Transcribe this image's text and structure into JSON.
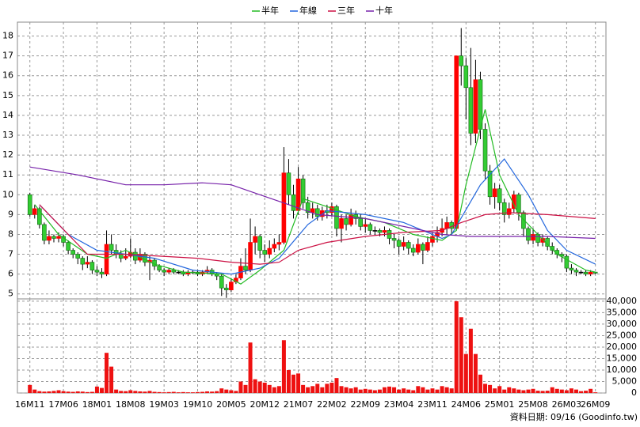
{
  "chart_data": {
    "type": "candlestick",
    "up_color": "#ff0000",
    "down_color": "#33cc33",
    "grid": true,
    "xlim": [
      -2.6,
      120.2
    ],
    "xticks": [
      {
        "value": 0,
        "label": "16M11"
      },
      {
        "value": 7,
        "label": "17M06"
      },
      {
        "value": 14,
        "label": "18M01"
      },
      {
        "value": 21,
        "label": "18M08"
      },
      {
        "value": 28,
        "label": "19M03"
      },
      {
        "value": 35,
        "label": "19M10"
      },
      {
        "value": 42,
        "label": "20M05"
      },
      {
        "value": 49,
        "label": "20M12"
      },
      {
        "value": 56,
        "label": "21M07"
      },
      {
        "value": 63,
        "label": "22M02"
      },
      {
        "value": 70,
        "label": "22M09"
      },
      {
        "value": 77,
        "label": "23M04"
      },
      {
        "value": 84,
        "label": "23M11"
      },
      {
        "value": 91,
        "label": "24M06"
      },
      {
        "value": 98,
        "label": "25M01"
      },
      {
        "value": 105,
        "label": "25M08"
      },
      {
        "value": 112,
        "label": "26M03"
      },
      {
        "value": 118,
        "label": "26M09"
      }
    ],
    "ylim": [
      4.75,
      18.7
    ],
    "yticks": [
      5,
      6,
      7,
      8,
      9,
      10,
      11,
      12,
      13,
      14,
      15,
      16,
      17,
      18
    ],
    "ohlc": [
      [
        10.0,
        10.1,
        8.9,
        9.0
      ],
      [
        9.0,
        9.5,
        8.8,
        9.3
      ],
      [
        9.3,
        9.4,
        8.3,
        8.5
      ],
      [
        8.5,
        8.6,
        7.5,
        7.7
      ],
      [
        7.7,
        8.2,
        7.5,
        7.9
      ],
      [
        7.9,
        8.0,
        7.6,
        7.8
      ],
      [
        7.8,
        8.1,
        7.6,
        7.9
      ],
      [
        7.9,
        8.0,
        7.4,
        7.6
      ],
      [
        7.6,
        7.7,
        7.0,
        7.2
      ],
      [
        7.2,
        7.3,
        6.8,
        7.0
      ],
      [
        7.0,
        7.1,
        6.5,
        6.8
      ],
      [
        6.8,
        6.9,
        6.2,
        6.5
      ],
      [
        6.5,
        6.9,
        6.3,
        6.6
      ],
      [
        6.6,
        6.7,
        6.0,
        6.2
      ],
      [
        6.2,
        6.4,
        5.9,
        6.1
      ],
      [
        6.1,
        6.3,
        5.8,
        6.0
      ],
      [
        6.0,
        8.2,
        5.9,
        7.5
      ],
      [
        7.5,
        8.0,
        7.0,
        7.2
      ],
      [
        7.2,
        7.5,
        6.8,
        7.0
      ],
      [
        7.0,
        7.2,
        6.6,
        6.8
      ],
      [
        6.8,
        7.3,
        6.7,
        6.9
      ],
      [
        6.9,
        7.8,
        6.8,
        7.1
      ],
      [
        7.1,
        7.3,
        6.5,
        6.7
      ],
      [
        6.7,
        7.3,
        6.6,
        7.0
      ],
      [
        7.0,
        7.1,
        6.4,
        6.6
      ],
      [
        6.6,
        6.9,
        5.7,
        6.7
      ],
      [
        6.7,
        6.8,
        6.2,
        6.4
      ],
      [
        6.4,
        6.5,
        6.1,
        6.2
      ],
      [
        6.2,
        6.3,
        5.9,
        6.1
      ],
      [
        6.1,
        6.3,
        6.0,
        6.2
      ],
      [
        6.2,
        6.3,
        6.0,
        6.1
      ],
      [
        6.1,
        6.2,
        6.0,
        6.1
      ],
      [
        6.1,
        6.2,
        5.9,
        6.0
      ],
      [
        6.0,
        6.2,
        5.9,
        6.1
      ],
      [
        6.1,
        6.2,
        6.0,
        6.1
      ],
      [
        6.1,
        6.2,
        5.9,
        6.0
      ],
      [
        6.0,
        6.2,
        5.9,
        6.1
      ],
      [
        6.1,
        6.4,
        6.0,
        6.2
      ],
      [
        6.2,
        6.3,
        5.9,
        6.0
      ],
      [
        6.0,
        6.1,
        5.7,
        5.9
      ],
      [
        5.9,
        6.0,
        4.9,
        5.3
      ],
      [
        5.3,
        5.5,
        4.8,
        5.2
      ],
      [
        5.2,
        5.8,
        5.1,
        5.6
      ],
      [
        5.6,
        6.0,
        5.5,
        5.8
      ],
      [
        5.8,
        6.8,
        5.7,
        6.4
      ],
      [
        6.4,
        7.3,
        6.0,
        6.2
      ],
      [
        6.2,
        8.8,
        6.1,
        7.6
      ],
      [
        7.6,
        8.4,
        7.0,
        7.9
      ],
      [
        7.9,
        8.0,
        6.8,
        7.2
      ],
      [
        7.2,
        7.5,
        6.6,
        7.0
      ],
      [
        7.0,
        7.7,
        6.8,
        7.3
      ],
      [
        7.3,
        7.8,
        7.1,
        7.5
      ],
      [
        7.5,
        8.0,
        7.2,
        7.6
      ],
      [
        7.6,
        12.4,
        7.5,
        11.1
      ],
      [
        11.1,
        11.8,
        9.5,
        10.0
      ],
      [
        10.0,
        10.5,
        8.8,
        9.2
      ],
      [
        9.2,
        11.4,
        9.0,
        10.8
      ],
      [
        10.8,
        11.0,
        9.3,
        9.6
      ],
      [
        9.6,
        9.9,
        8.8,
        9.1
      ],
      [
        9.1,
        9.6,
        8.8,
        9.3
      ],
      [
        9.3,
        9.5,
        8.7,
        8.9
      ],
      [
        8.9,
        9.4,
        8.7,
        9.2
      ],
      [
        9.2,
        9.5,
        8.8,
        9.1
      ],
      [
        9.1,
        9.6,
        8.9,
        9.4
      ],
      [
        9.4,
        9.5,
        7.9,
        8.3
      ],
      [
        8.3,
        9.0,
        7.6,
        8.8
      ],
      [
        8.8,
        9.0,
        8.2,
        8.5
      ],
      [
        8.5,
        9.3,
        8.4,
        9.0
      ],
      [
        9.0,
        9.2,
        8.5,
        8.8
      ],
      [
        8.8,
        9.0,
        8.2,
        8.4
      ],
      [
        8.4,
        8.8,
        8.1,
        8.5
      ],
      [
        8.5,
        8.6,
        8.0,
        8.2
      ],
      [
        8.2,
        8.4,
        8.0,
        8.2
      ],
      [
        8.2,
        8.3,
        7.9,
        8.1
      ],
      [
        8.1,
        8.4,
        7.9,
        8.2
      ],
      [
        8.2,
        8.3,
        7.5,
        7.8
      ],
      [
        7.8,
        8.0,
        7.3,
        7.7
      ],
      [
        7.7,
        7.8,
        7.0,
        7.4
      ],
      [
        7.4,
        7.9,
        7.2,
        7.6
      ],
      [
        7.6,
        7.7,
        7.0,
        7.3
      ],
      [
        7.3,
        7.5,
        6.9,
        7.1
      ],
      [
        7.1,
        7.8,
        7.0,
        7.5
      ],
      [
        7.5,
        7.6,
        6.5,
        7.2
      ],
      [
        7.2,
        7.9,
        7.1,
        7.6
      ],
      [
        7.6,
        8.1,
        7.4,
        7.9
      ],
      [
        7.9,
        8.4,
        7.6,
        8.1
      ],
      [
        8.1,
        8.8,
        7.9,
        8.3
      ],
      [
        8.3,
        8.9,
        8.0,
        8.6
      ],
      [
        8.6,
        8.7,
        8.0,
        8.3
      ],
      [
        8.3,
        17.0,
        8.2,
        17.0
      ],
      [
        17.0,
        18.4,
        15.5,
        16.5
      ],
      [
        16.5,
        16.9,
        13.8,
        15.4
      ],
      [
        15.4,
        17.4,
        12.5,
        13.1
      ],
      [
        13.1,
        16.8,
        12.6,
        15.8
      ],
      [
        15.8,
        16.2,
        12.8,
        13.3
      ],
      [
        13.3,
        13.6,
        10.8,
        11.2
      ],
      [
        11.2,
        11.5,
        9.5,
        9.9
      ],
      [
        9.9,
        10.6,
        9.3,
        10.3
      ],
      [
        10.3,
        10.5,
        9.2,
        9.6
      ],
      [
        9.6,
        9.8,
        8.6,
        9.0
      ],
      [
        9.0,
        9.6,
        8.8,
        9.3
      ],
      [
        9.3,
        10.2,
        9.1,
        10.0
      ],
      [
        10.0,
        10.1,
        8.7,
        9.1
      ],
      [
        9.1,
        9.2,
        7.9,
        8.3
      ],
      [
        8.3,
        8.4,
        7.5,
        7.7
      ],
      [
        7.7,
        8.3,
        7.5,
        8.0
      ],
      [
        8.0,
        8.1,
        7.4,
        7.6
      ],
      [
        7.6,
        8.0,
        7.4,
        7.8
      ],
      [
        7.8,
        7.9,
        7.2,
        7.4
      ],
      [
        7.4,
        7.6,
        7.0,
        7.2
      ],
      [
        7.2,
        7.3,
        6.8,
        7.0
      ],
      [
        7.0,
        7.1,
        6.6,
        6.9
      ],
      [
        6.9,
        7.0,
        6.1,
        6.3
      ],
      [
        6.3,
        6.5,
        6.0,
        6.2
      ],
      [
        6.2,
        6.3,
        5.9,
        6.1
      ],
      [
        6.1,
        6.2,
        6.0,
        6.1
      ],
      [
        6.1,
        6.2,
        5.9,
        6.0
      ],
      [
        6.0,
        6.2,
        5.9,
        6.1
      ],
      [
        6.1,
        6.1,
        6.0,
        6.05
      ]
    ],
    "series": [
      {
        "name": "半年",
        "color": "#22bb22",
        "x": [
          1,
          6,
          12,
          16,
          20,
          26,
          32,
          40,
          44,
          48,
          53,
          57,
          62,
          68,
          74,
          80,
          86,
          89,
          91,
          95,
          98,
          102,
          106,
          110,
          116,
          118
        ],
        "values": [
          9.5,
          8.0,
          7.0,
          6.8,
          7.2,
          6.5,
          6.1,
          6.0,
          5.5,
          6.2,
          7.2,
          9.8,
          9.4,
          8.9,
          8.6,
          8.0,
          7.7,
          8.2,
          10.5,
          14.3,
          11.0,
          9.0,
          8.0,
          7.0,
          6.2,
          6.1
        ]
      },
      {
        "name": "年線",
        "color": "#2266dd",
        "x": [
          2,
          8,
          14,
          20,
          26,
          34,
          42,
          48,
          52,
          58,
          62,
          70,
          78,
          86,
          88,
          94,
          99,
          104,
          108,
          112,
          118
        ],
        "values": [
          9.5,
          8.0,
          7.2,
          7.0,
          6.8,
          6.2,
          6.0,
          6.3,
          6.8,
          8.5,
          9.2,
          9.0,
          8.6,
          7.8,
          8.0,
          10.5,
          11.8,
          10.0,
          8.2,
          7.2,
          6.5
        ]
      },
      {
        "name": "三年",
        "color": "#cc1144",
        "x": [
          2,
          12,
          20,
          35,
          42,
          48,
          52,
          56,
          62,
          70,
          78,
          86,
          90,
          95,
          100,
          108,
          118
        ],
        "values": [
          9.5,
          7.0,
          7.0,
          6.8,
          6.6,
          6.5,
          6.6,
          7.2,
          7.6,
          7.9,
          8.1,
          8.2,
          8.6,
          9.0,
          9.1,
          9.0,
          8.8
        ]
      },
      {
        "name": "十年",
        "color": "#7722aa",
        "x": [
          0,
          10,
          20,
          28,
          36,
          42,
          48,
          54,
          60,
          70,
          78,
          86,
          92,
          100,
          108,
          118
        ],
        "values": [
          11.4,
          11.0,
          10.5,
          10.5,
          10.6,
          10.5,
          10.0,
          9.5,
          9.0,
          8.8,
          8.4,
          8.0,
          7.9,
          7.9,
          7.9,
          7.8
        ]
      }
    ],
    "volume": {
      "color": "#ee1111",
      "ylim": [
        0,
        41000
      ],
      "yticks": [
        0,
        {
          "value": 5000,
          "label": "5,000"
        },
        {
          "value": 10000,
          "label": "10,000"
        },
        {
          "value": 15000,
          "label": "15,000"
        },
        {
          "value": 20000,
          "label": "20,000"
        },
        {
          "value": 25000,
          "label": "25,000"
        },
        {
          "value": 30000,
          "label": "30,000"
        },
        {
          "value": 35000,
          "label": "35,000"
        },
        {
          "value": 40000,
          "label": "40,000"
        }
      ],
      "values": [
        3500,
        1500,
        800,
        600,
        700,
        900,
        1200,
        800,
        600,
        500,
        700,
        600,
        400,
        500,
        2800,
        2200,
        17500,
        11500,
        1500,
        900,
        800,
        1200,
        900,
        700,
        600,
        900,
        500,
        400,
        300,
        400,
        500,
        300,
        400,
        300,
        300,
        400,
        500,
        700,
        600,
        800,
        2000,
        1500,
        1200,
        900,
        5000,
        3500,
        22000,
        6000,
        5000,
        4500,
        3500,
        2500,
        3000,
        23000,
        10000,
        8000,
        8500,
        3500,
        2500,
        3000,
        4000,
        2500,
        4000,
        4500,
        6500,
        3000,
        2500,
        2000,
        2500,
        1500,
        1800,
        1500,
        1200,
        1500,
        2500,
        2800,
        2500,
        1500,
        2000,
        1500,
        1200,
        3000,
        2500,
        1500,
        2000,
        1500,
        3000,
        2500,
        2000,
        40000,
        33000,
        17000,
        28000,
        17000,
        8000,
        4000,
        3500,
        2000,
        3000,
        1500,
        2500,
        2000,
        1500,
        1200,
        1500,
        1800,
        1000,
        900,
        1000,
        2500,
        1800,
        1500,
        1200,
        2000,
        1500,
        800,
        1000,
        1800,
        300
      ]
    },
    "source_note": "資料日期: 09/16 (Goodinfo.tw)"
  }
}
